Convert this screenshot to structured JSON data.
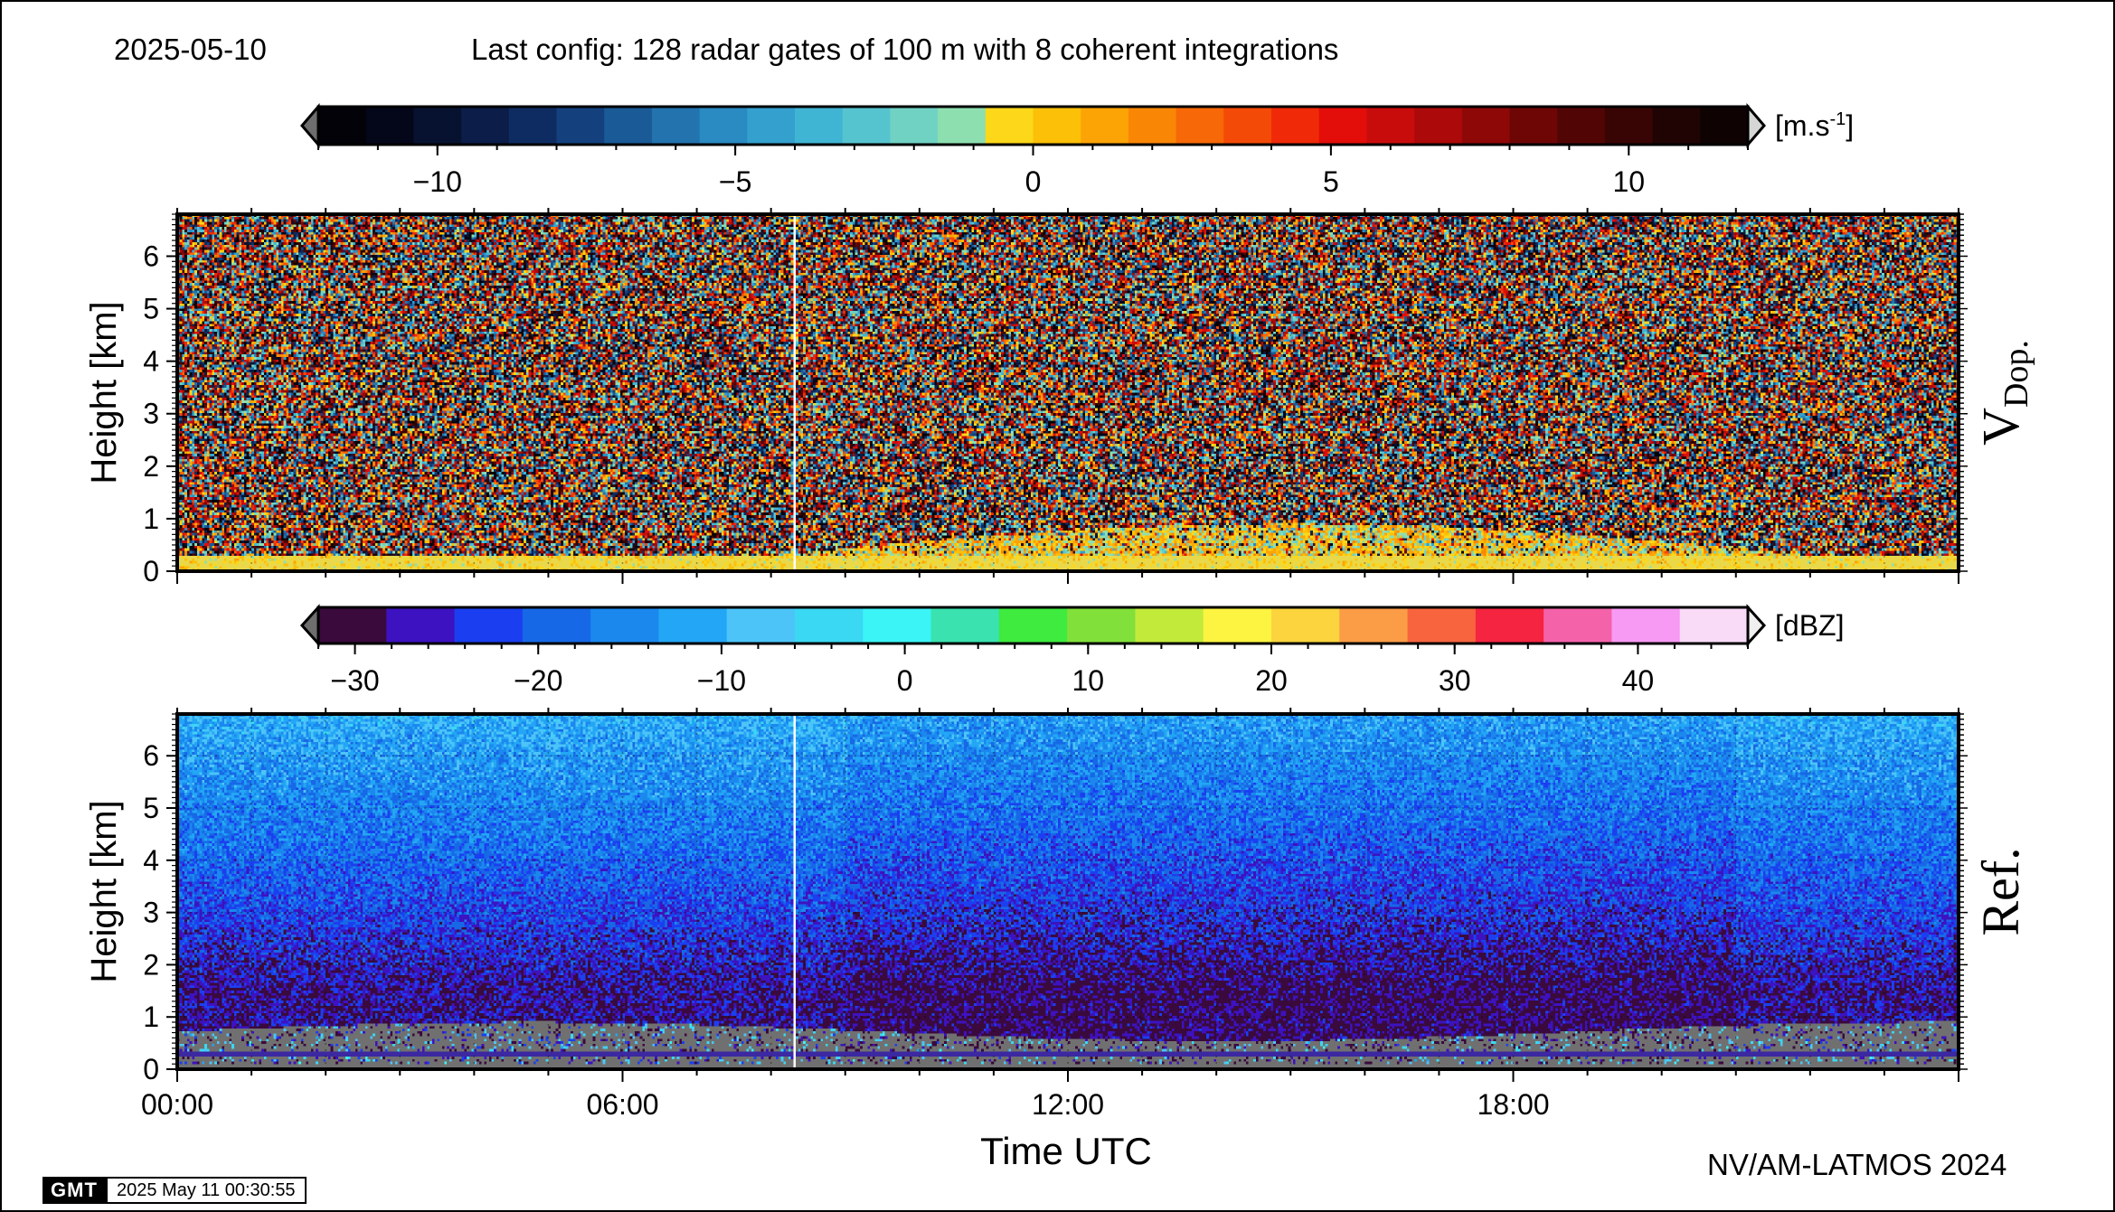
{
  "header": {
    "date": "2025-05-10",
    "config": "Last config: 128 radar gates of 100 m with 8 coherent integrations"
  },
  "footer": {
    "credit": "NV/AM-LATMOS 2024",
    "gmt_logo": "GMT",
    "timestamp": "2025 May 11 00:30:55"
  },
  "chart_data": [
    {
      "type": "heatmap",
      "id": "doppler",
      "panel_label": "V",
      "panel_label_sub": "Dop.",
      "ylabel": "Height [km]",
      "ylim": [
        0,
        6.8
      ],
      "yticks": [
        0,
        1,
        2,
        3,
        4,
        5,
        6
      ],
      "xlim": [
        0,
        24
      ],
      "x_data_gap_hour": 8.3,
      "grid": true,
      "colorbar": {
        "unit": "[m.s",
        "unit_sup": "-1",
        "unit_end": "]",
        "range": [
          -12,
          12
        ],
        "ticks": [
          -10,
          -5,
          0,
          5,
          10
        ],
        "tick_labels": [
          "−10",
          "−5",
          "0",
          "5",
          "10"
        ],
        "colors": [
          "#020208",
          "#04061a",
          "#071230",
          "#0b1d48",
          "#0f2c62",
          "#14417e",
          "#1a5a96",
          "#2273ae",
          "#2a8ac2",
          "#33a0ce",
          "#40b4d3",
          "#56c4cf",
          "#70d2c3",
          "#8edfb0",
          "#fcd71a",
          "#fcc008",
          "#fca406",
          "#fa8606",
          "#f76808",
          "#f44a08",
          "#f02a08",
          "#e30e0a",
          "#c80c0c",
          "#ac0a0a",
          "#8e0808",
          "#6e0606",
          "#520505",
          "#380404",
          "#200303",
          "#0e0202"
        ]
      },
      "features": {
        "background": "random noise across all colors at all heights",
        "surface_band_km": [
          0,
          0.3
        ],
        "surface_band_color": "#e9d84a",
        "low_echo_top_km": [
          0.4,
          1.0
        ]
      }
    },
    {
      "type": "heatmap",
      "id": "reflectivity",
      "panel_label": "Ref.",
      "ylabel": "Height [km]",
      "xlabel": "Time UTC",
      "ylim": [
        0,
        6.8
      ],
      "yticks": [
        0,
        1,
        2,
        3,
        4,
        5,
        6
      ],
      "xlim": [
        0,
        24
      ],
      "xticks": [
        0,
        6,
        12,
        18
      ],
      "xtick_labels": [
        "00:00",
        "06:00",
        "12:00",
        "18:00"
      ],
      "x_data_gap_hour": 8.3,
      "grid": true,
      "colorbar": {
        "unit": "[dBZ]",
        "range": [
          -32,
          46
        ],
        "ticks": [
          -30,
          -20,
          -10,
          0,
          10,
          20,
          30,
          40
        ],
        "tick_labels": [
          "−30",
          "−20",
          "−10",
          "0",
          "10",
          "20",
          "30",
          "40"
        ],
        "colors": [
          "#3a0a3c",
          "#3d12c0",
          "#1b3ff0",
          "#1768e6",
          "#1b88ee",
          "#23a6f5",
          "#4cc4f8",
          "#3ad8f2",
          "#3af4f6",
          "#3ae2b0",
          "#3eeb3e",
          "#82e03a",
          "#c2ea3a",
          "#fcf440",
          "#fcd43e",
          "#fb9c46",
          "#f8643e",
          "#f52440",
          "#f462aa",
          "#f79af4",
          "#f9dbf7"
        ]
      },
      "features": {
        "upper_noise_dBZ": -12,
        "mid_dBZ": -22,
        "boundary_layer_dBZ": -28,
        "low_clutter_color": "#707070",
        "low_clutter_km": [
          0.15,
          0.9
        ],
        "surface_line_km": 0.3
      }
    }
  ]
}
